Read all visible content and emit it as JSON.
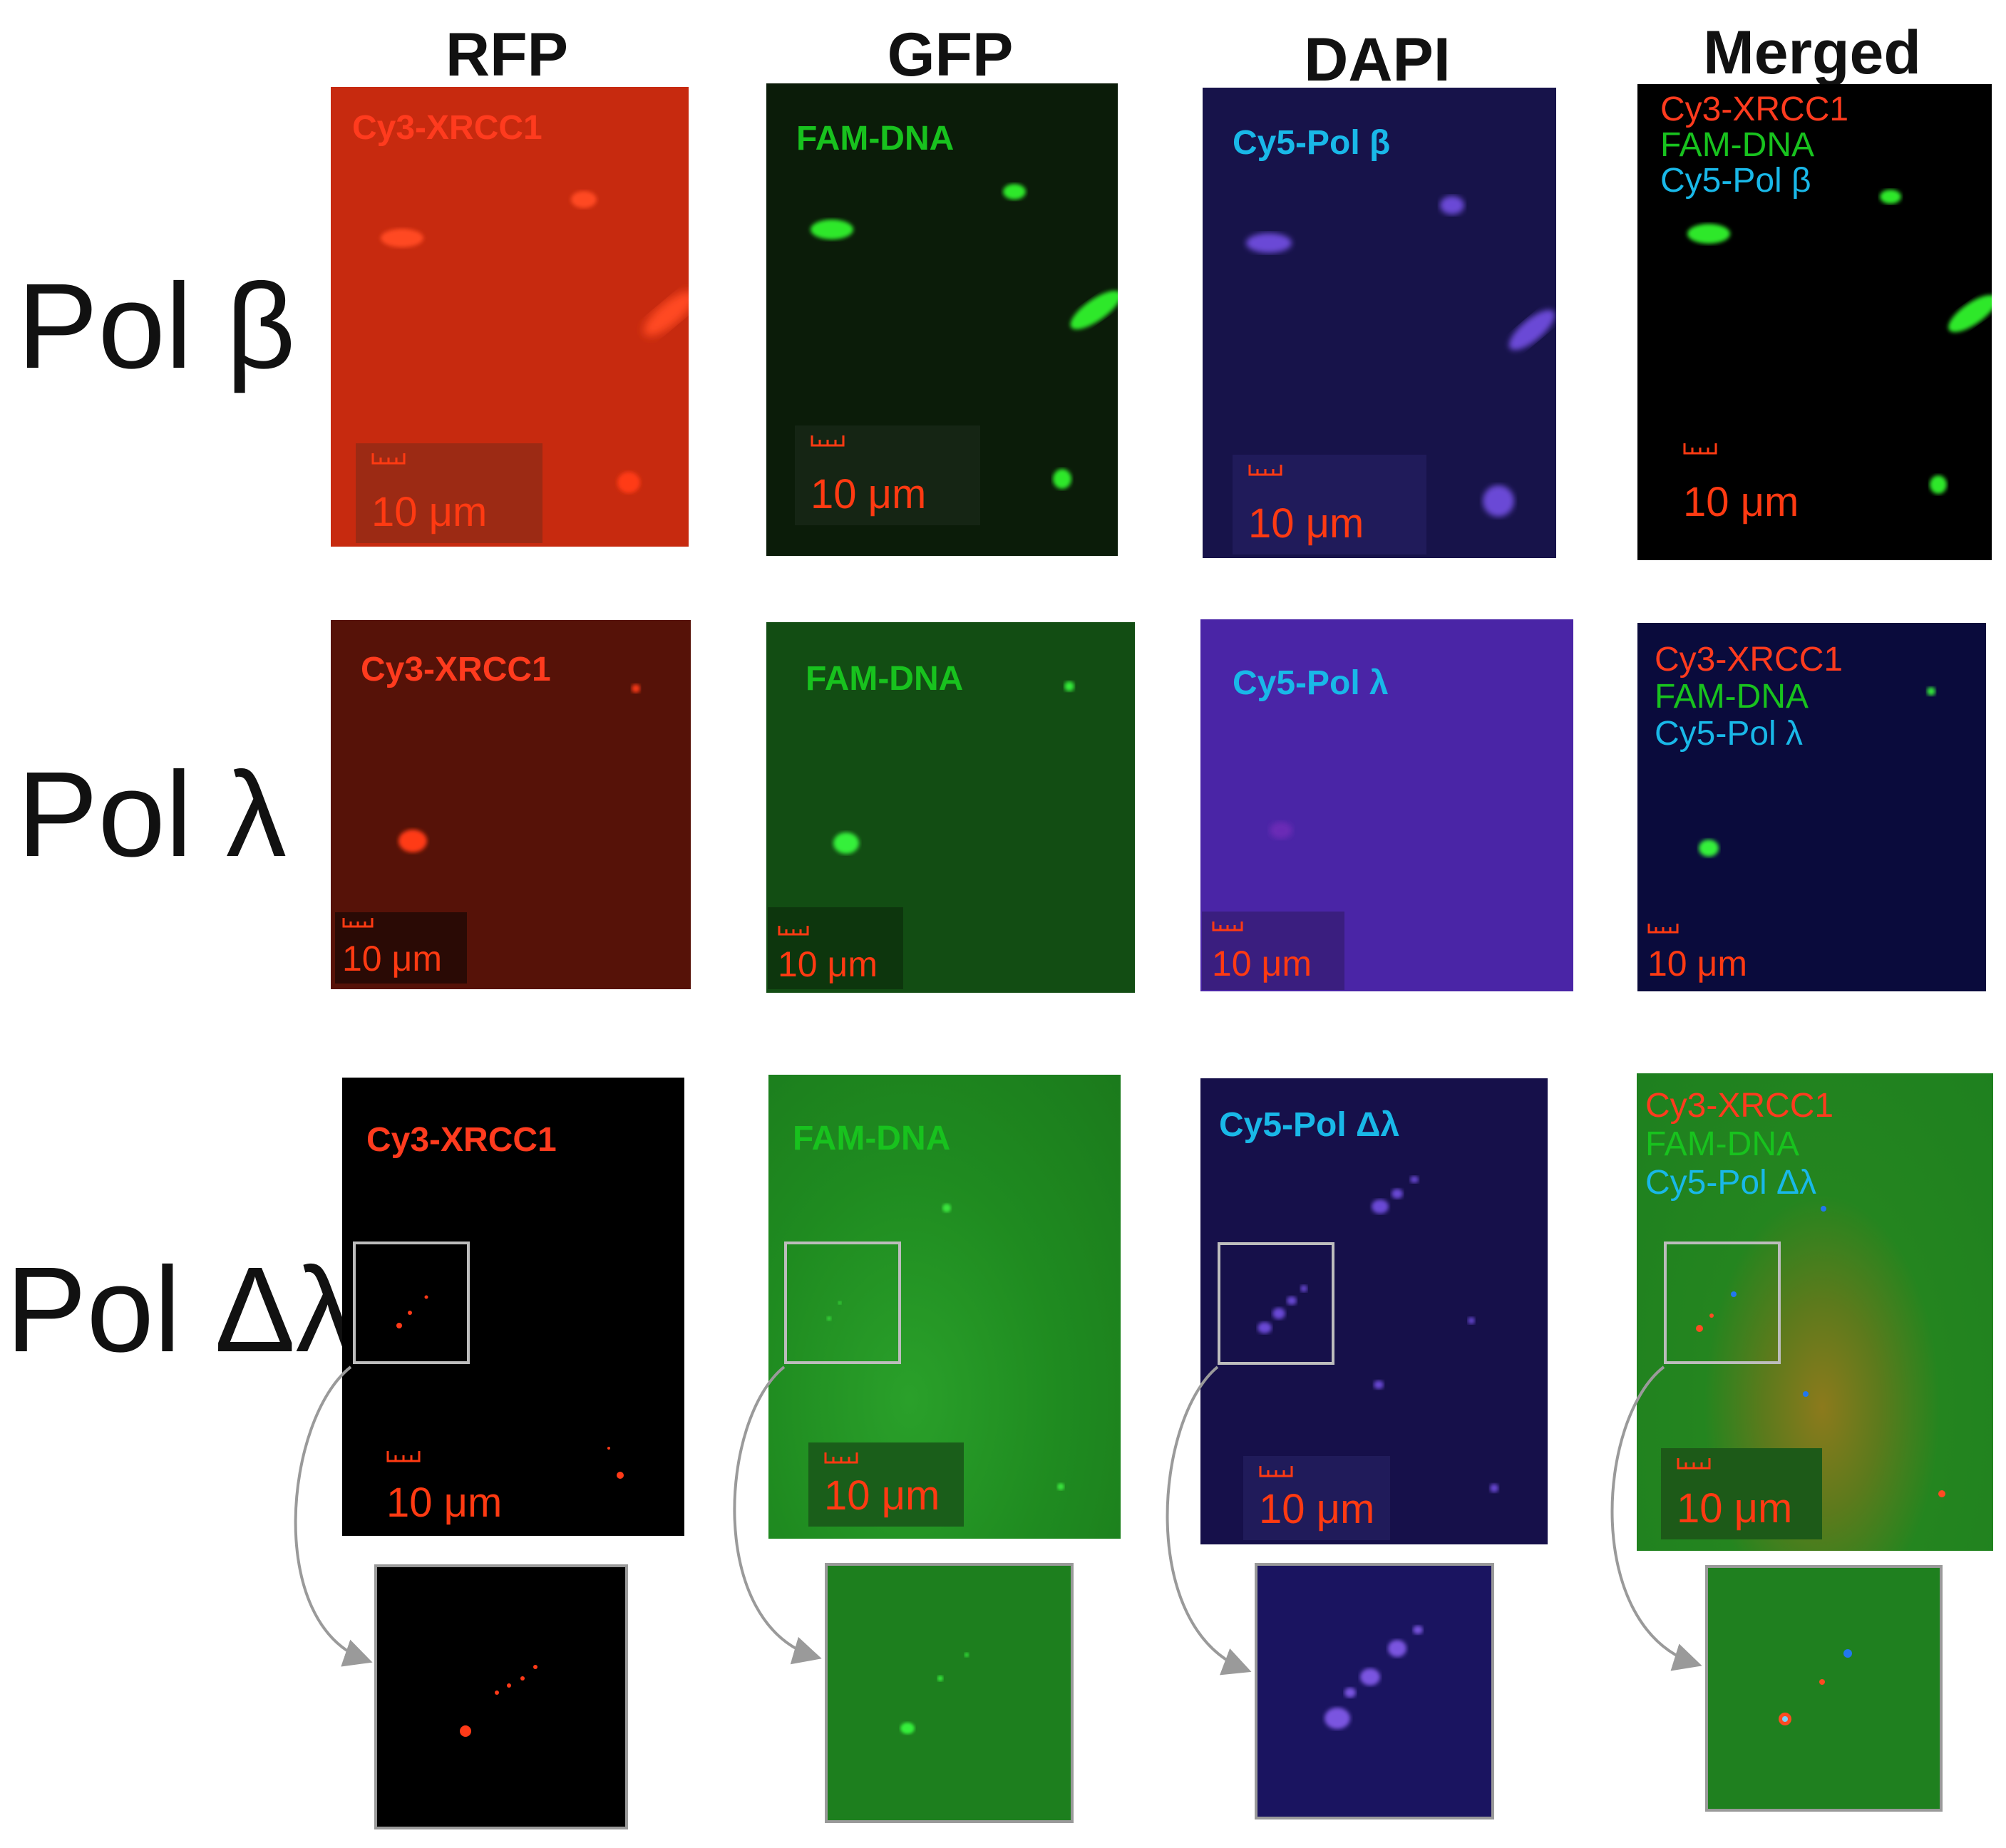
{
  "columns": [
    "RFP",
    "GFP",
    "DAPI",
    "Merged"
  ],
  "rows": [
    "Pol β",
    "Pol λ",
    "Pol Δλ"
  ],
  "scale_bar": "10 μm",
  "labels": {
    "rfp": "Cy3-XRCC1",
    "gfp": "FAM-DNA",
    "dapi_beta": "Cy5-Pol β",
    "dapi_lambda": "Cy5-Pol λ",
    "dapi_dlambda": "Cy5-Pol  Δλ"
  },
  "colors": {
    "rfp_text": "#ff3b1e",
    "gfp_text": "#18c21e",
    "dapi_text": "#19b8e8",
    "scale_text": "#ff3a12",
    "arrow": "#9a9a9a"
  }
}
